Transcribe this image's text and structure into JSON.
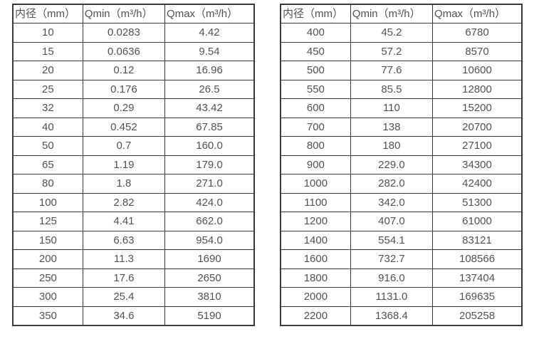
{
  "chart_data": [
    {
      "type": "table",
      "title": "",
      "columns": [
        "内径（mm）",
        "Qmin（m³/h）",
        "Qmax（m³/h）"
      ],
      "rows": [
        [
          "10",
          "0.0283",
          "4.42"
        ],
        [
          "15",
          "0.0636",
          "9.54"
        ],
        [
          "20",
          "0.12",
          "16.96"
        ],
        [
          "25",
          "0.176",
          "26.5"
        ],
        [
          "32",
          "0.29",
          "43.42"
        ],
        [
          "40",
          "0.452",
          "67.85"
        ],
        [
          "50",
          "0.7",
          "160.0"
        ],
        [
          "65",
          "1.19",
          "179.0"
        ],
        [
          "80",
          "1.8",
          "271.0"
        ],
        [
          "100",
          "2.82",
          "424.0"
        ],
        [
          "125",
          "4.41",
          "662.0"
        ],
        [
          "150",
          "6.63",
          "954.0"
        ],
        [
          "200",
          "11.3",
          "1690"
        ],
        [
          "250",
          "17.6",
          "2650"
        ],
        [
          "300",
          "25.4",
          "3810"
        ],
        [
          "350",
          "34.6",
          "5190"
        ]
      ]
    },
    {
      "type": "table",
      "title": "",
      "columns": [
        "内径（mm）",
        "Qmin（m³/h）",
        "Qmax（m³/h）"
      ],
      "rows": [
        [
          "400",
          "45.2",
          "6780"
        ],
        [
          "450",
          "57.2",
          "8570"
        ],
        [
          "500",
          "77.6",
          "10600"
        ],
        [
          "550",
          "85.5",
          "12800"
        ],
        [
          "600",
          "110",
          "15200"
        ],
        [
          "700",
          "138",
          "20700"
        ],
        [
          "800",
          "180",
          "27100"
        ],
        [
          "900",
          "229.0",
          "34300"
        ],
        [
          "1000",
          "282.0",
          "42400"
        ],
        [
          "1100",
          "342.0",
          "51300"
        ],
        [
          "1200",
          "407.0",
          "61000"
        ],
        [
          "1400",
          "554.1",
          "83121"
        ],
        [
          "1600",
          "732.7",
          "108566"
        ],
        [
          "1800",
          "916.0",
          "137404"
        ],
        [
          "2000",
          "1131.0",
          "169635"
        ],
        [
          "2200",
          "1368.4",
          "205258"
        ]
      ]
    }
  ],
  "colors": {
    "border": "#3b3b3b",
    "text": "#525252",
    "background": "#ffffff"
  }
}
